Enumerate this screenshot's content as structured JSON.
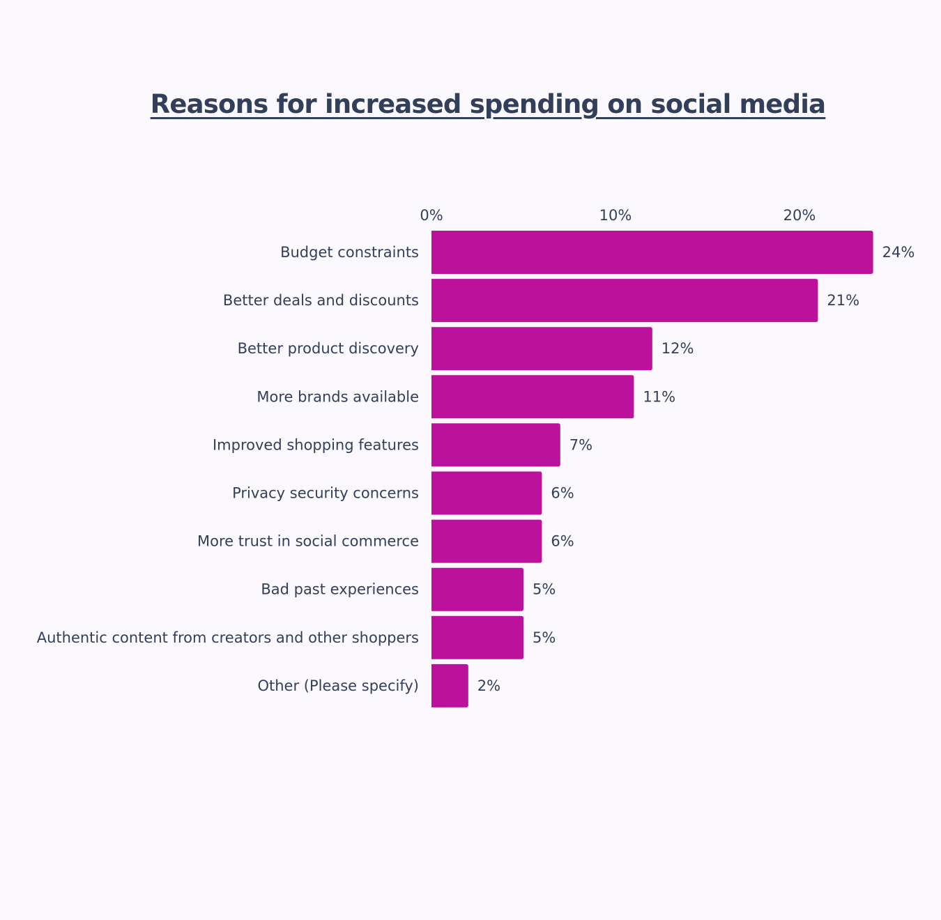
{
  "chart_data": {
    "type": "bar",
    "orientation": "horizontal",
    "title": "Reasons for increased spending on social media",
    "categories": [
      "Budget constraints",
      "Better deals and discounts",
      "Better product discovery",
      "More brands available",
      "Improved shopping features",
      "Privacy security concerns",
      "More trust in social commerce",
      "Bad past experiences",
      "Authentic content from creators and other shoppers",
      "Other (Please specify)"
    ],
    "values": [
      24,
      21,
      12,
      11,
      7,
      6,
      6,
      5,
      5,
      2
    ],
    "value_labels": [
      "24%",
      "21%",
      "12%",
      "11%",
      "7%",
      "6%",
      "6%",
      "5%",
      "5%",
      "2%"
    ],
    "x_ticks": [
      0,
      10,
      20
    ],
    "x_tick_labels": [
      "0%",
      "10%",
      "20%"
    ],
    "xlim": [
      0,
      24
    ],
    "axis_position": "top",
    "grid": false,
    "legend": "none",
    "bar_color": "#bb119c",
    "text_color": "#323f5a",
    "background_color": "#fbf9fe"
  }
}
